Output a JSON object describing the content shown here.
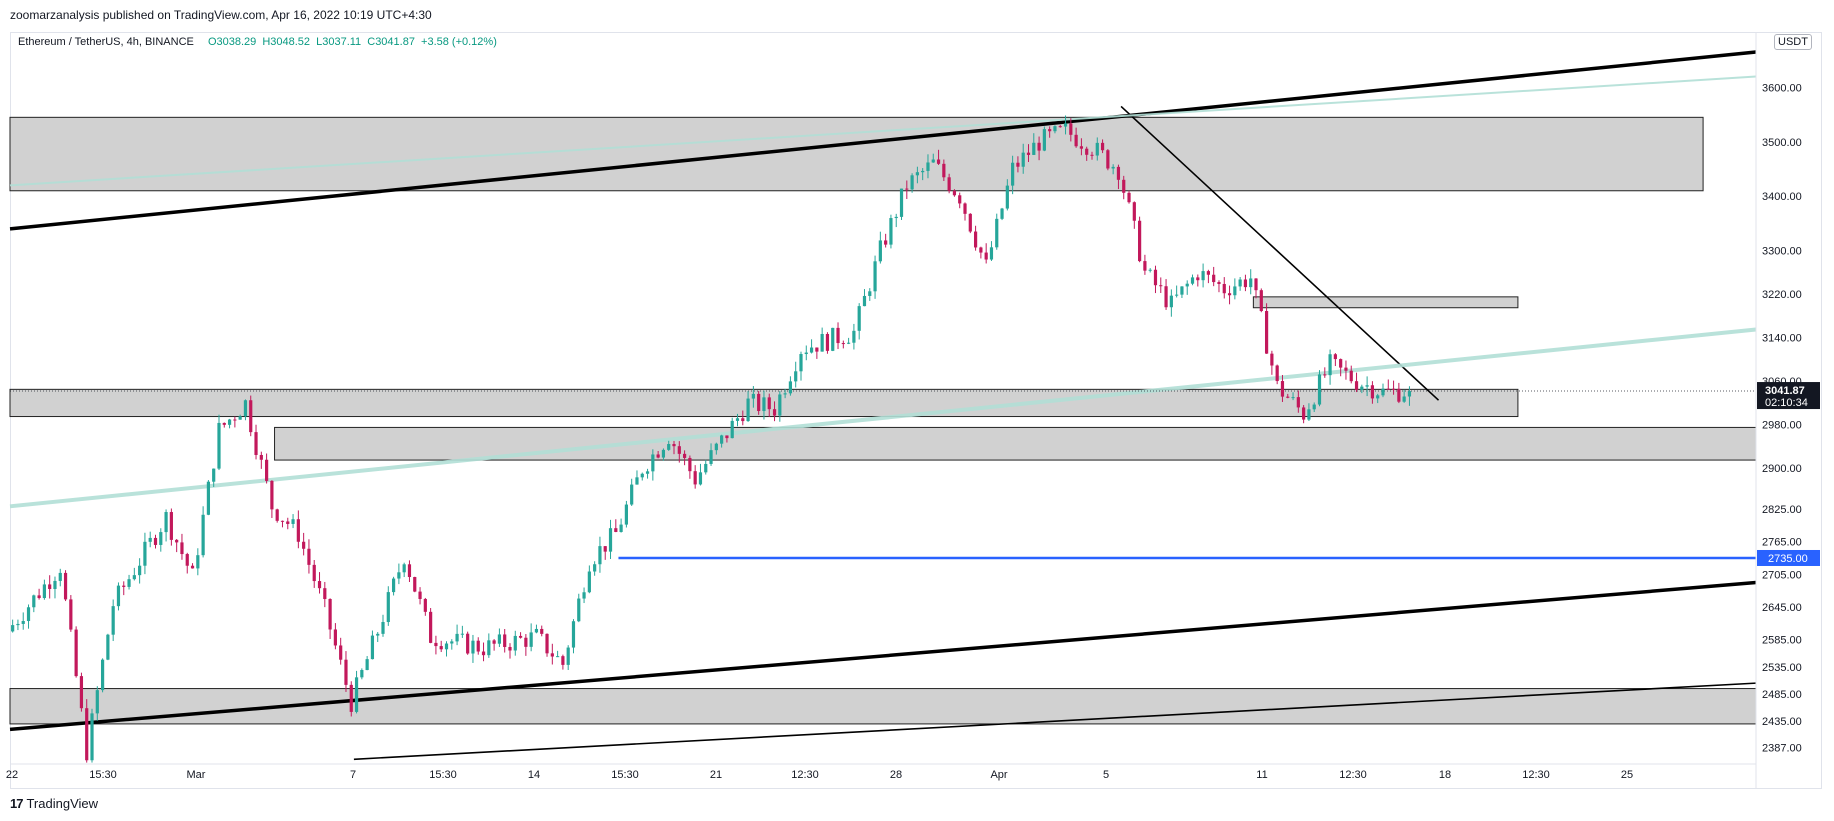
{
  "header": {
    "published_text": "zoomarzanalysis published on TradingView.com, Apr 16, 2022 10:19 UTC+4:30"
  },
  "ohlc": {
    "symbol_label": "Ethereum / TetherUS, 4h, BINANCE",
    "open": "O3038.29",
    "high": "H3048.52",
    "low": "L3037.11",
    "close": "C3041.87",
    "change": "+3.58 (+0.12%)"
  },
  "price_axis": {
    "unit": "USDT",
    "ticks": [
      "3600.00",
      "3500.00",
      "3400.00",
      "3300.00",
      "3220.00",
      "3140.00",
      "3060.00",
      "2980.00",
      "2900.00",
      "2825.00",
      "2765.00",
      "2705.00",
      "2645.00",
      "2585.00",
      "2535.00",
      "2485.00",
      "2435.00",
      "2387.00"
    ],
    "current_price_label": "3041.87",
    "countdown_label": "02:10:34",
    "level_label": "2735.00"
  },
  "time_axis": {
    "ticks": [
      "22",
      "15:30",
      "Mar",
      "7",
      "15:30",
      "14",
      "15:30",
      "21",
      "12:30",
      "28",
      "Apr",
      "5",
      "11",
      "12:30",
      "18",
      "12:30",
      "25"
    ]
  },
  "footer": {
    "brand": "TradingView",
    "brand_mark": "17"
  },
  "colors": {
    "up": "#26a69a",
    "down": "#c2185b",
    "zone_fill": "#d1d1d1",
    "zone_stroke": "#222222",
    "channel": "#000000",
    "mint_line": "#b2dfd6",
    "level_line": "#2962ff",
    "price_label_bg": "#131722"
  },
  "chart_data": {
    "type": "candlestick",
    "title": "Ethereum / TetherUS, 4h, BINANCE",
    "xlabel": "",
    "ylabel": "",
    "ylim": [
      2360,
      3700
    ],
    "x_range": [
      "2022-02-22",
      "2022-04-29"
    ],
    "last_close": 3041.87,
    "ohlc_path": [
      {
        "date": "2022-02-22",
        "price": 2600
      },
      {
        "date": "2022-02-24",
        "price": 2720
      },
      {
        "date": "2022-02-25",
        "price": 2380
      },
      {
        "date": "2022-02-26",
        "price": 2650
      },
      {
        "date": "2022-02-28",
        "price": 2810
      },
      {
        "date": "2022-03-01",
        "price": 2700
      },
      {
        "date": "2022-03-02",
        "price": 2970
      },
      {
        "date": "2022-03-03",
        "price": 3020
      },
      {
        "date": "2022-03-04",
        "price": 2830
      },
      {
        "date": "2022-03-05",
        "price": 2780
      },
      {
        "date": "2022-03-06",
        "price": 2640
      },
      {
        "date": "2022-03-07",
        "price": 2470
      },
      {
        "date": "2022-03-08",
        "price": 2600
      },
      {
        "date": "2022-03-09",
        "price": 2740
      },
      {
        "date": "2022-03-10",
        "price": 2590
      },
      {
        "date": "2022-03-12",
        "price": 2570
      },
      {
        "date": "2022-03-14",
        "price": 2590
      },
      {
        "date": "2022-03-15",
        "price": 2540
      },
      {
        "date": "2022-03-16",
        "price": 2730
      },
      {
        "date": "2022-03-17",
        "price": 2780
      },
      {
        "date": "2022-03-18",
        "price": 2900
      },
      {
        "date": "2022-03-19",
        "price": 2960
      },
      {
        "date": "2022-03-20",
        "price": 2880
      },
      {
        "date": "2022-03-21",
        "price": 2950
      },
      {
        "date": "2022-03-22",
        "price": 3020
      },
      {
        "date": "2022-03-23",
        "price": 3010
      },
      {
        "date": "2022-03-24",
        "price": 3120
      },
      {
        "date": "2022-03-26",
        "price": 3150
      },
      {
        "date": "2022-03-27",
        "price": 3300
      },
      {
        "date": "2022-03-28",
        "price": 3420
      },
      {
        "date": "2022-03-29",
        "price": 3460
      },
      {
        "date": "2022-03-30",
        "price": 3400
      },
      {
        "date": "2022-03-31",
        "price": 3270
      },
      {
        "date": "2022-04-01",
        "price": 3450
      },
      {
        "date": "2022-04-02",
        "price": 3500
      },
      {
        "date": "2022-04-03",
        "price": 3520
      },
      {
        "date": "2022-04-04",
        "price": 3490
      },
      {
        "date": "2022-04-05",
        "price": 3450
      },
      {
        "date": "2022-04-06",
        "price": 3260
      },
      {
        "date": "2022-04-07",
        "price": 3200
      },
      {
        "date": "2022-04-08",
        "price": 3260
      },
      {
        "date": "2022-04-09",
        "price": 3230
      },
      {
        "date": "2022-04-10",
        "price": 3250
      },
      {
        "date": "2022-04-11",
        "price": 3050
      },
      {
        "date": "2022-04-12",
        "price": 3000
      },
      {
        "date": "2022-04-13",
        "price": 3090
      },
      {
        "date": "2022-04-14",
        "price": 3060
      },
      {
        "date": "2022-04-15",
        "price": 3040
      },
      {
        "date": "2022-04-16",
        "price": 3041.87
      }
    ],
    "horizontal_levels": [
      2735
    ],
    "zones": [
      {
        "y": [
          3410,
          3545
        ],
        "x": [
          "2022-02-22",
          "2022-04-27"
        ]
      },
      {
        "y": [
          2995,
          3045
        ],
        "x": [
          "2022-02-22",
          "2022-04-20"
        ]
      },
      {
        "y": [
          2915,
          2975
        ],
        "x": [
          "2022-03-04",
          "2022-04-29"
        ]
      },
      {
        "y": [
          2430,
          2495
        ],
        "x": [
          "2022-02-22",
          "2022-04-29"
        ]
      },
      {
        "y": [
          3195,
          3215
        ],
        "x": [
          "2022-04-10",
          "2022-04-20"
        ]
      }
    ],
    "trendlines": [
      {
        "kind": "channel-upper",
        "from": {
          "date": "2022-02-22",
          "price": 3340
        },
        "to": {
          "date": "2022-04-29",
          "price": 3665
        }
      },
      {
        "kind": "channel-lower",
        "from": {
          "date": "2022-02-22",
          "price": 2420
        },
        "to": {
          "date": "2022-04-29",
          "price": 2690
        }
      },
      {
        "kind": "descending",
        "from": {
          "date": "2022-04-05",
          "price": 3565
        },
        "to": {
          "date": "2022-04-17",
          "price": 3025
        }
      },
      {
        "kind": "mint-upper",
        "from": {
          "date": "2022-02-22",
          "price": 3420
        },
        "to": {
          "date": "2022-04-29",
          "price": 3620
        }
      },
      {
        "kind": "mint-mid",
        "from": {
          "date": "2022-02-22",
          "price": 2830
        },
        "to": {
          "date": "2022-04-29",
          "price": 3155
        }
      },
      {
        "kind": "thin-lower",
        "from": {
          "date": "2022-03-07",
          "price": 2365
        },
        "to": {
          "date": "2022-04-29",
          "price": 2505
        }
      }
    ]
  }
}
